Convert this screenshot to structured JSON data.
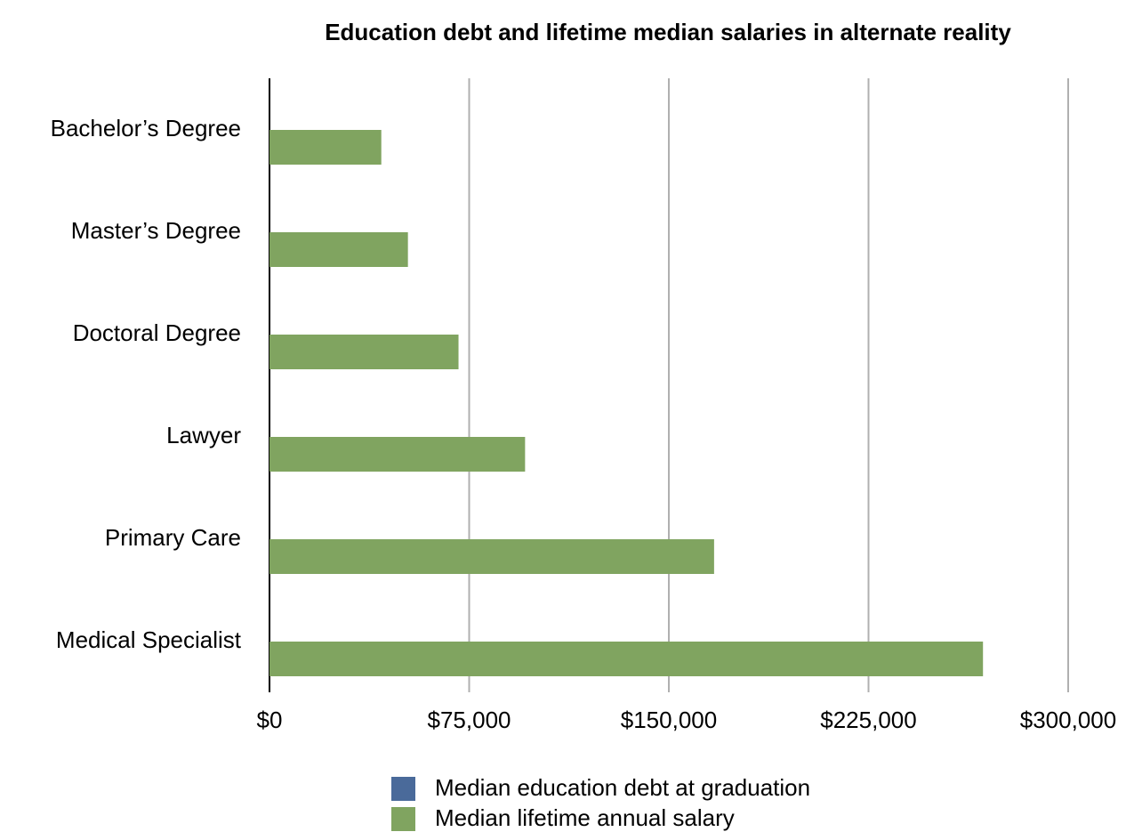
{
  "chart_data": {
    "type": "bar",
    "orientation": "horizontal",
    "title": "Education debt and lifetime median salaries in alternate reality",
    "categories": [
      "Bachelor’s Degree",
      "Master’s Degree",
      "Doctoral Degree",
      "Lawyer",
      "Primary Care",
      "Medical Specialist"
    ],
    "series": [
      {
        "name": "Median education debt at graduation",
        "color": "#4a6a9a",
        "values": [
          0,
          0,
          0,
          0,
          0,
          0
        ]
      },
      {
        "name": "Median lifetime annual salary",
        "color": "#80a460",
        "values": [
          42000,
          52000,
          71000,
          96000,
          167000,
          268000
        ]
      }
    ],
    "xlim": [
      0,
      300000
    ],
    "xticks": [
      {
        "value": 0,
        "label": "$0"
      },
      {
        "value": 75000,
        "label": "$75,000"
      },
      {
        "value": 150000,
        "label": "$150,000"
      },
      {
        "value": 225000,
        "label": "$225,000"
      },
      {
        "value": 300000,
        "label": "$300,000"
      }
    ],
    "grid": true
  }
}
